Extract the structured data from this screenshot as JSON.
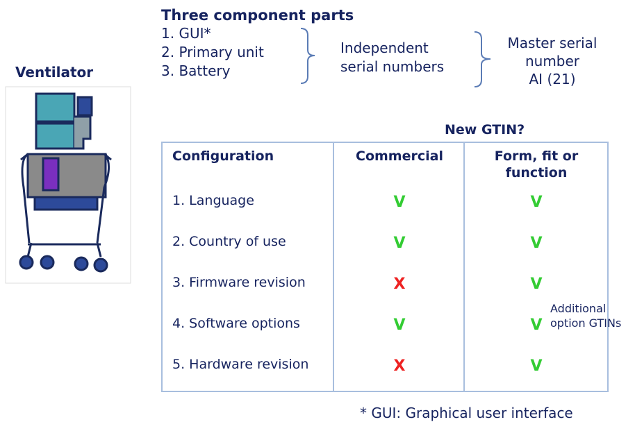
{
  "ventilator_label": "Ventilator",
  "components": {
    "title": "Three component parts",
    "items": [
      "1.  GUI*",
      "2.  Primary unit",
      "3.  Battery"
    ],
    "group_label": [
      "Independent",
      "serial numbers"
    ],
    "master_label": [
      "Master serial",
      "number",
      "AI (21)"
    ]
  },
  "table": {
    "header": "New GTIN?",
    "columns": [
      [
        "Configuration"
      ],
      [
        "Commercial"
      ],
      [
        "Form, fit or",
        "function"
      ]
    ],
    "rows": [
      {
        "cells": [
          "1. Language",
          "V",
          "V"
        ]
      },
      {
        "cells": [
          "2. Country of use",
          "V",
          "V"
        ]
      },
      {
        "cells": [
          "3. Firmware revision",
          "X",
          "V"
        ]
      },
      {
        "cells": [
          "4. Software options",
          "V",
          "V"
        ],
        "note": [
          "Additional",
          "option GTINs"
        ]
      },
      {
        "cells": [
          "5. Hardware revision",
          "X",
          "V"
        ]
      }
    ]
  },
  "footnote": "* GUI: Graphical user interface"
}
